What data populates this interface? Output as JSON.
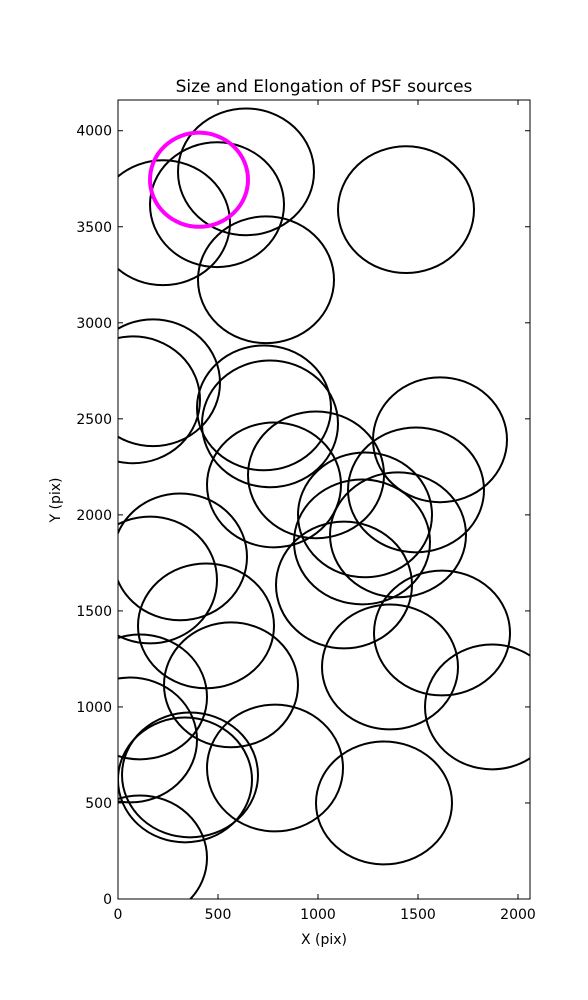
{
  "chart_data": {
    "type": "ellipse",
    "title": "Size and Elongation of PSF sources",
    "x_label": "X (pix)",
    "y_label": "Y (pix)",
    "xlim": [
      0,
      2060
    ],
    "ylim": [
      0,
      4160
    ],
    "xticks": [
      0,
      500,
      1000,
      1500,
      2000
    ],
    "yticks": [
      0,
      500,
      1000,
      1500,
      2000,
      2500,
      3000,
      3500,
      4000
    ],
    "series": [
      {
        "color": "#000000",
        "x": [
          640,
          1440,
          495,
          225,
          740,
          175,
          75,
          730,
          760,
          1610,
          990,
          780,
          1490,
          1235,
          1400,
          1220,
          310,
          160,
          1130,
          440,
          1620,
          565,
          1360,
          1870,
          110,
          60,
          360,
          335,
          785,
          1330,
          110
        ],
        "values": [
          3786,
          3589,
          3615,
          3521,
          3224,
          2688,
          2599,
          2557,
          2474,
          2391,
          2208,
          2156,
          2130,
          2000,
          1896,
          1859,
          1781,
          1661,
          1635,
          1422,
          1385,
          1115,
          1208,
          1000,
          1052,
          828,
          646,
          620,
          682,
          500,
          214
        ],
        "widths": [
          680,
          680,
          670,
          670,
          680,
          670,
          670,
          670,
          680,
          670,
          680,
          670,
          680,
          670,
          680,
          680,
          670,
          670,
          680,
          680,
          680,
          670,
          680,
          670,
          670,
          670,
          680,
          670,
          680,
          680,
          670
        ],
        "heights": [
          660,
          660,
          650,
          650,
          660,
          660,
          660,
          650,
          660,
          650,
          660,
          650,
          650,
          650,
          650,
          650,
          660,
          660,
          660,
          650,
          650,
          650,
          650,
          650,
          650,
          650,
          650,
          650,
          660,
          640,
          650
        ]
      },
      {
        "color": "#ff00ff",
        "x": [
          405
        ],
        "values": [
          3745
        ],
        "widths": [
          490
        ],
        "heights": [
          490
        ]
      }
    ]
  }
}
